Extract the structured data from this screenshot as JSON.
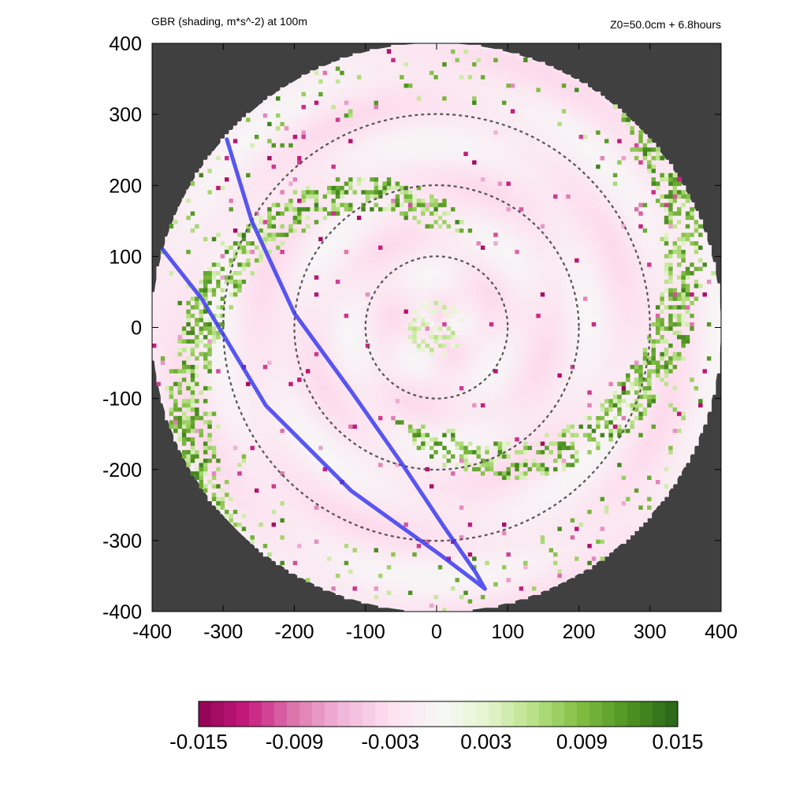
{
  "header": {
    "title": "GBR (shading, m*s^-2) at 100m",
    "info": "Z0=50.0cm  + 6.8hours"
  },
  "colors": {
    "outside": "#404040",
    "track": "#3b3bf0",
    "rings": "#555555",
    "negative": "#8e0152",
    "positive": "#276419"
  },
  "chart_data": {
    "type": "heatmap",
    "title": "GBR (shading, m*s^-2) at 100m",
    "subtitle": "Z0=50.0cm  + 6.8hours",
    "xlim": [
      -400,
      400
    ],
    "ylim": [
      -400,
      400
    ],
    "x_ticks": [
      "-400",
      "-300",
      "-200",
      "-100",
      "0",
      "100",
      "200",
      "300",
      "400"
    ],
    "y_ticks": [
      "400",
      "300",
      "200",
      "100",
      "0",
      "-100",
      "-200",
      "-300",
      "-400"
    ],
    "domain_radius": 400,
    "range_rings": [
      100,
      200,
      300
    ],
    "track": [
      [
        -295,
        265
      ],
      [
        -260,
        150
      ],
      [
        -200,
        20
      ],
      [
        -120,
        -90
      ],
      [
        -50,
        -190
      ],
      [
        10,
        -280
      ],
      [
        55,
        -345
      ],
      [
        68,
        -368
      ],
      [
        58,
        -360
      ],
      [
        5,
        -320
      ],
      [
        -120,
        -230
      ],
      [
        -240,
        -110
      ],
      [
        -330,
        40
      ],
      [
        -385,
        110
      ]
    ],
    "colorbar": {
      "min": -0.015,
      "max": 0.015,
      "ticks": [
        "-0.015",
        "-0.009",
        "-0.003",
        "0.003",
        "0.009",
        "0.015"
      ],
      "colors": [
        "#8e0152",
        "#c51b7d",
        "#de77ae",
        "#f1b6da",
        "#fde0ef",
        "#f7f7f7",
        "#e6f5d0",
        "#b8e186",
        "#7fbc41",
        "#4d9221",
        "#276419"
      ]
    }
  }
}
